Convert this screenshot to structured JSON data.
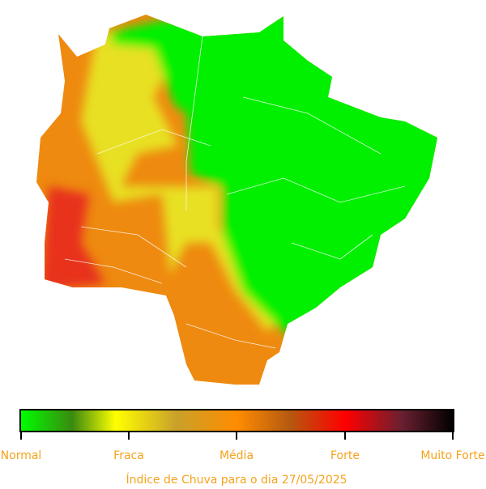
{
  "legend": {
    "labels": [
      "Normal",
      "Fraca",
      "Média",
      "Forte",
      "Muito Forte"
    ]
  },
  "caption": "Índice de Chuva para o dia 27/05/2025"
}
